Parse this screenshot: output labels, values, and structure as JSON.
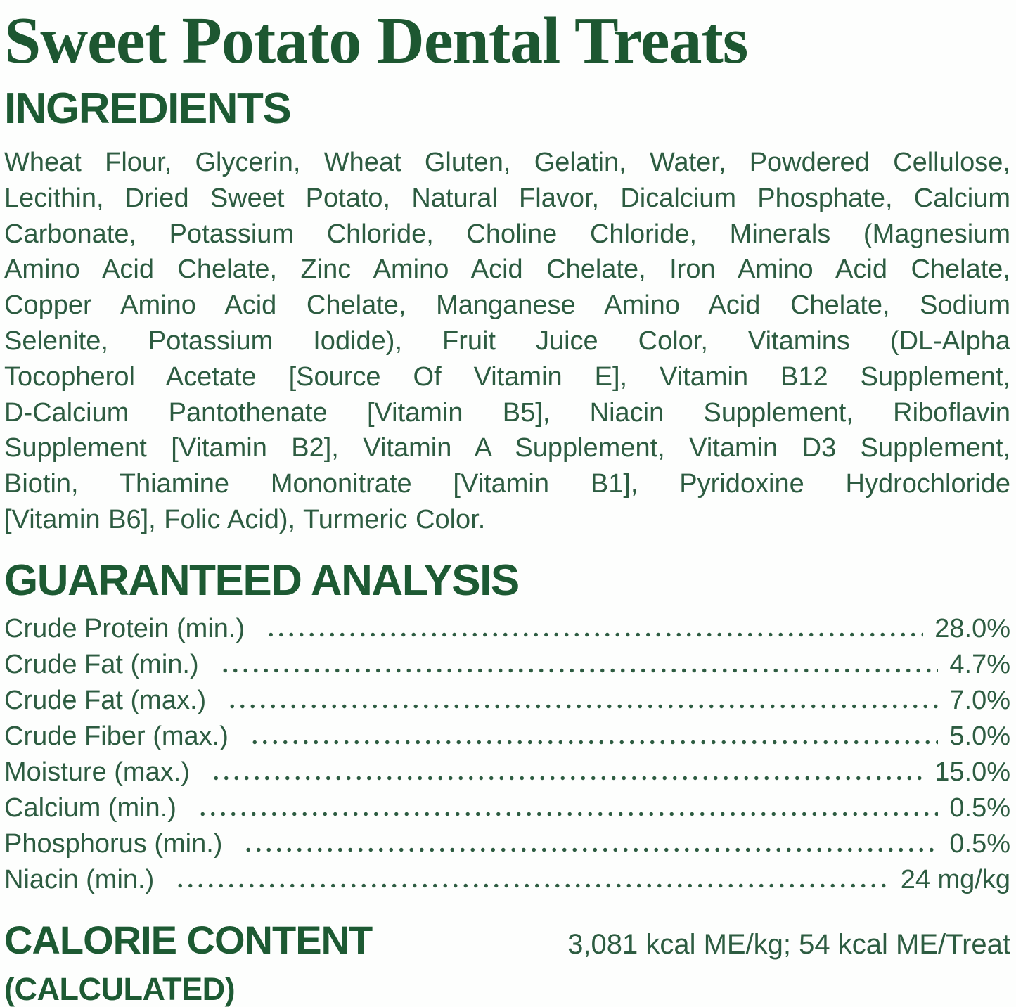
{
  "title": "Sweet Potato Dental Treats",
  "ingredients": {
    "heading": "INGREDIENTS",
    "lines": [
      "Wheat Flour, Glycerin, Wheat Gluten, Gelatin, Water, Powdered Cellulose,",
      "Lecithin, Dried Sweet Potato, Natural Flavor, Dicalcium Phosphate, Calcium",
      "Carbonate, Potassium Chloride, Choline Chloride, Minerals (Magnesium",
      "Amino Acid Chelate, Zinc Amino Acid Chelate, Iron Amino Acid Chelate,",
      "Copper Amino Acid Chelate, Manganese Amino Acid Chelate, Sodium",
      "Selenite, Potassium Iodide), Fruit Juice Color, Vitamins (DL-Alpha",
      "Tocopherol Acetate [Source Of Vitamin E], Vitamin B12 Supplement,",
      "D-Calcium Pantothenate [Vitamin B5], Niacin Supplement, Riboflavin",
      "Supplement [Vitamin B2], Vitamin A Supplement, Vitamin D3 Supplement,",
      "Biotin, Thiamine Mononitrate [Vitamin B1], Pyridoxine Hydrochloride",
      "[Vitamin B6], Folic Acid), Turmeric Color."
    ]
  },
  "analysis": {
    "heading": "GUARANTEED ANALYSIS",
    "rows": [
      {
        "label": "Crude Protein (min.)",
        "value": "28.0%"
      },
      {
        "label": "Crude Fat (min.)",
        "value": "4.7%"
      },
      {
        "label": "Crude Fat (max.)",
        "value": "7.0%"
      },
      {
        "label": "Crude Fiber (max.)",
        "value": "5.0%"
      },
      {
        "label": "Moisture (max.)",
        "value": "15.0%"
      },
      {
        "label": "Calcium (min.)",
        "value": "0.5%"
      },
      {
        "label": "Phosphorus (min.)",
        "value": "0.5%"
      },
      {
        "label": "Niacin (min.)",
        "value": "24 mg/kg"
      }
    ]
  },
  "calorie": {
    "heading_line1": "CALORIE CONTENT",
    "heading_line2": "(CALCULATED)",
    "value": "3,081 kcal ME/kg; 54 kcal ME/Treat"
  },
  "colors": {
    "title_green": "#1d5731",
    "heading_green": "#1d5a33",
    "body_green": "#2d5c41",
    "background": "#fdfefd"
  }
}
